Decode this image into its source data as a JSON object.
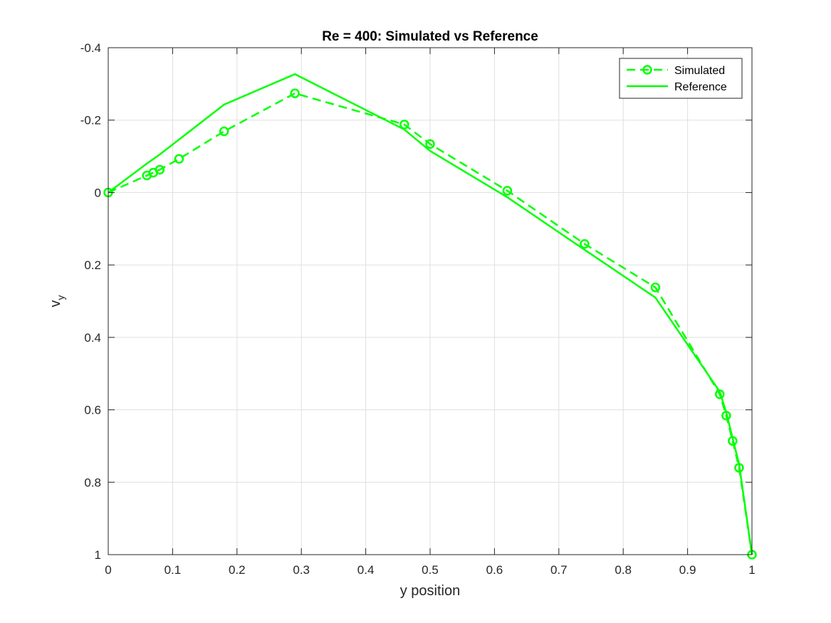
{
  "chart_data": {
    "type": "line",
    "title": "Re = 400: Simulated vs Reference",
    "xlabel": "y position",
    "ylabel": {
      "main": "v",
      "sub": "y"
    },
    "xlim": [
      0,
      1
    ],
    "ylim": [
      -0.4,
      1
    ],
    "y_reversed": true,
    "grid": true,
    "legend_position": "top-right",
    "xticks": [
      0,
      0.1,
      0.2,
      0.3,
      0.4,
      0.5,
      0.6,
      0.7,
      0.8,
      0.9,
      1
    ],
    "xtick_labels": [
      "0",
      "0.1",
      "0.2",
      "0.3",
      "0.4",
      "0.5",
      "0.6",
      "0.7",
      "0.8",
      "0.9",
      "1"
    ],
    "yticks": [
      -0.4,
      -0.2,
      0,
      0.2,
      0.4,
      0.6,
      0.8,
      1
    ],
    "ytick_labels": [
      "-0.4",
      "-0.2",
      "0",
      "0.2",
      "0.4",
      "0.6",
      "0.8",
      "1"
    ],
    "series": [
      {
        "name": "Simulated",
        "style": "dashed-circle-markers",
        "color": "#00ff00",
        "x": [
          0,
          0.06,
          0.07,
          0.08,
          0.11,
          0.18,
          0.29,
          0.46,
          0.5,
          0.62,
          0.74,
          0.85,
          0.95,
          0.96,
          0.97,
          0.98,
          1
        ],
        "y": [
          0,
          -0.047,
          -0.055,
          -0.063,
          -0.093,
          -0.169,
          -0.274,
          -0.188,
          -0.134,
          -0.005,
          0.142,
          0.262,
          0.557,
          0.616,
          0.686,
          0.76,
          1
        ]
      },
      {
        "name": "Reference",
        "style": "solid",
        "color": "#00ff00",
        "x": [
          0,
          0.06,
          0.08,
          0.18,
          0.29,
          0.46,
          0.5,
          0.62,
          0.74,
          0.85,
          0.95,
          0.96,
          0.97,
          0.98,
          1
        ],
        "y": [
          0,
          -0.08,
          -0.105,
          -0.243,
          -0.327,
          -0.174,
          -0.115,
          0.013,
          0.158,
          0.29,
          0.55,
          0.607,
          0.679,
          0.75,
          1
        ]
      }
    ]
  }
}
